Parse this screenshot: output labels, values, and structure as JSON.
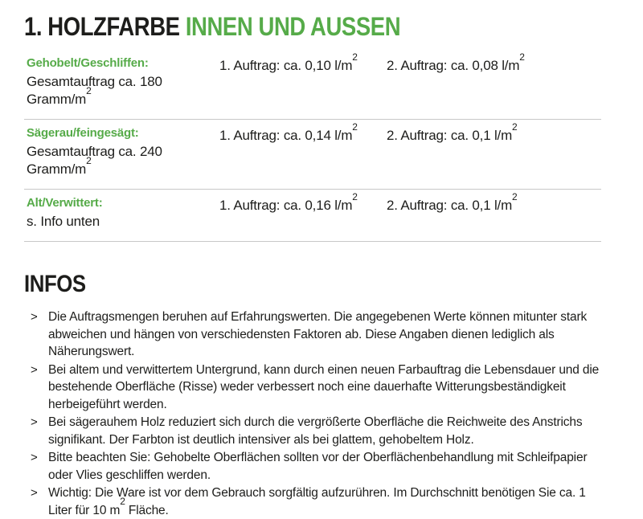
{
  "colors": {
    "accent_green": "#56ab49",
    "text": "#1d1d1b",
    "divider": "#c8c8c8"
  },
  "header": {
    "title_black": "1. HOLZFARBE ",
    "title_green": "INNEN UND AUSSEN"
  },
  "table": {
    "rows": [
      {
        "label": "Gehobelt/Geschliffen:",
        "detail": "Gesamtauftrag ca. 180 Gramm/m",
        "detail_sup": "2",
        "coat1": "1. Auftrag: ca. 0,10 l/m",
        "coat1_sup": "2",
        "coat2": "2. Auftrag: ca. 0,08 l/m",
        "coat2_sup": "2"
      },
      {
        "label": "Sägerau/feingesägt:",
        "detail": "Gesamtauftrag ca. 240 Gramm/m",
        "detail_sup": "2",
        "coat1": "1. Auftrag: ca. 0,14 l/m",
        "coat1_sup": "2",
        "coat2": "2. Auftrag: ca. 0,1 l/m",
        "coat2_sup": "2"
      },
      {
        "label": "Alt/Verwittert:",
        "detail": "s. Info unten",
        "detail_sup": "",
        "coat1": "1. Auftrag: ca. 0,16 l/m",
        "coat1_sup": "2",
        "coat2": "2. Auftrag: ca. 0,1 l/m",
        "coat2_sup": "2"
      }
    ]
  },
  "infos": {
    "heading": "INFOS",
    "bullet_char": ">",
    "items": [
      {
        "text": "Die Auftragsmengen beruhen auf Erfahrungswerten. Die angegebenen Werte können mitunter stark abweichen und hängen von verschiedensten Faktoren ab. Diese Angaben dienen lediglich als Näherungswert.",
        "sup": "",
        "tail": ""
      },
      {
        "text": "Bei altem und verwittertem Untergrund, kann durch einen neuen Farbauftrag die Lebensdauer und die bestehende Oberfläche (Risse) weder verbessert noch eine dauerhafte Witterungsbeständigkeit herbeigeführt werden.",
        "sup": "",
        "tail": ""
      },
      {
        "text": "Bei sägerauhem Holz reduziert sich durch die vergrößerte Oberfläche die Reichweite des Anstrichs signifikant. Der Farbton ist deutlich intensiver als bei glattem, gehobeltem Holz.",
        "sup": "",
        "tail": ""
      },
      {
        "text": "Bitte beachten Sie: Gehobelte Oberflächen sollten vor der Oberflächenbehandlung mit Schleifpapier oder Vlies geschliffen werden.",
        "sup": "",
        "tail": ""
      },
      {
        "text": "Wichtig: Die Ware ist vor dem Gebrauch sorgfältig aufzurühren. Im Durchschnitt benötigen Sie ca. 1 Liter für 10 m",
        "sup": "2",
        "tail": " Fläche."
      }
    ]
  }
}
